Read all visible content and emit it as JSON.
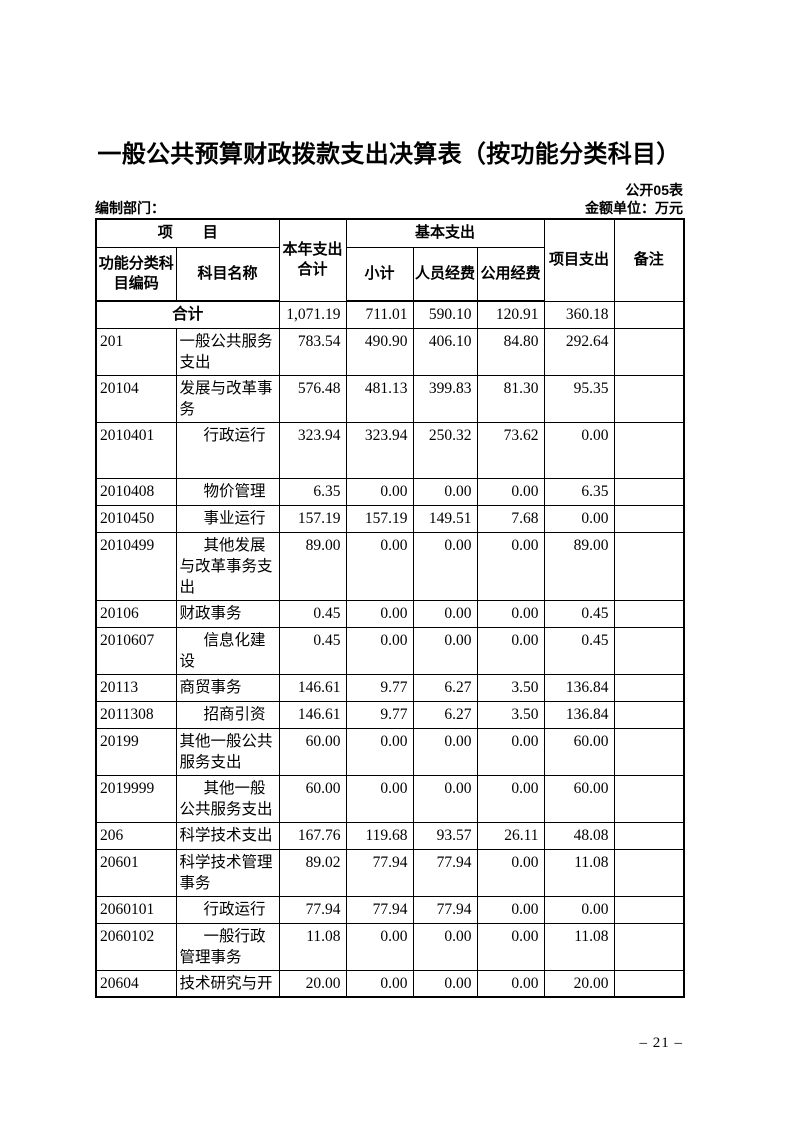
{
  "page": {
    "title": "一般公共预算财政拨款支出决算表（按功能分类科目）",
    "table_label": "公开05表",
    "prepared_by_label": "编制部门：",
    "unit_label": "金额单位：万元",
    "page_number": "– 21 –"
  },
  "colors": {
    "text": "#000000",
    "background": "#ffffff",
    "border": "#000000"
  },
  "table": {
    "header": {
      "item_group": "项　　目",
      "code": "功能分类科目编码",
      "name": "科目名称",
      "year_total": "本年支出合计",
      "basic_group": "基本支出",
      "subtotal": "小计",
      "personnel": "人员经费",
      "public": "公用经费",
      "project": "项目支出",
      "remarks": "备注"
    },
    "total_row": {
      "label": "合计",
      "values": [
        "1,071.19",
        "711.01",
        "590.10",
        "120.91",
        "360.18"
      ],
      "remark": ""
    },
    "rows": [
      {
        "code": "201",
        "name": "一般公共服务支出",
        "values": [
          "783.54",
          "490.90",
          "406.10",
          "84.80",
          "292.64"
        ],
        "remark": ""
      },
      {
        "code": "20104",
        "name": "发展与改革事务",
        "values": [
          "576.48",
          "481.13",
          "399.83",
          "81.30",
          "95.35"
        ],
        "remark": ""
      },
      {
        "code": "2010401",
        "name": "行政运行",
        "values": [
          "323.94",
          "323.94",
          "250.32",
          "73.62",
          "0.00"
        ],
        "remark": "",
        "tall": true
      },
      {
        "code": "2010408",
        "name": "物价管理",
        "values": [
          "6.35",
          "0.00",
          "0.00",
          "0.00",
          "6.35"
        ],
        "remark": ""
      },
      {
        "code": "2010450",
        "name": "事业运行",
        "values": [
          "157.19",
          "157.19",
          "149.51",
          "7.68",
          "0.00"
        ],
        "remark": ""
      },
      {
        "code": "2010499",
        "name": "其他发展与改革事务支出",
        "values": [
          "89.00",
          "0.00",
          "0.00",
          "0.00",
          "89.00"
        ],
        "remark": ""
      },
      {
        "code": "20106",
        "name": "财政事务",
        "values": [
          "0.45",
          "0.00",
          "0.00",
          "0.00",
          "0.45"
        ],
        "remark": ""
      },
      {
        "code": "2010607",
        "name": "信息化建设",
        "values": [
          "0.45",
          "0.00",
          "0.00",
          "0.00",
          "0.45"
        ],
        "remark": ""
      },
      {
        "code": "20113",
        "name": "商贸事务",
        "values": [
          "146.61",
          "9.77",
          "6.27",
          "3.50",
          "136.84"
        ],
        "remark": ""
      },
      {
        "code": "2011308",
        "name": "招商引资",
        "values": [
          "146.61",
          "9.77",
          "6.27",
          "3.50",
          "136.84"
        ],
        "remark": ""
      },
      {
        "code": "20199",
        "name": "其他一般公共服务支出",
        "values": [
          "60.00",
          "0.00",
          "0.00",
          "0.00",
          "60.00"
        ],
        "remark": ""
      },
      {
        "code": "2019999",
        "name": "其他一般公共服务支出",
        "values": [
          "60.00",
          "0.00",
          "0.00",
          "0.00",
          "60.00"
        ],
        "remark": ""
      },
      {
        "code": "206",
        "name": "科学技术支出",
        "values": [
          "167.76",
          "119.68",
          "93.57",
          "26.11",
          "48.08"
        ],
        "remark": ""
      },
      {
        "code": "20601",
        "name": "科学技术管理事务",
        "values": [
          "89.02",
          "77.94",
          "77.94",
          "0.00",
          "11.08"
        ],
        "remark": ""
      },
      {
        "code": "2060101",
        "name": "行政运行",
        "values": [
          "77.94",
          "77.94",
          "77.94",
          "0.00",
          "0.00"
        ],
        "remark": ""
      },
      {
        "code": "2060102",
        "name": "一般行政管理事务",
        "values": [
          "11.08",
          "0.00",
          "0.00",
          "0.00",
          "11.08"
        ],
        "remark": ""
      },
      {
        "code": "20604",
        "name": "技术研究与开",
        "values": [
          "20.00",
          "0.00",
          "0.00",
          "0.00",
          "20.00"
        ],
        "remark": ""
      }
    ]
  }
}
